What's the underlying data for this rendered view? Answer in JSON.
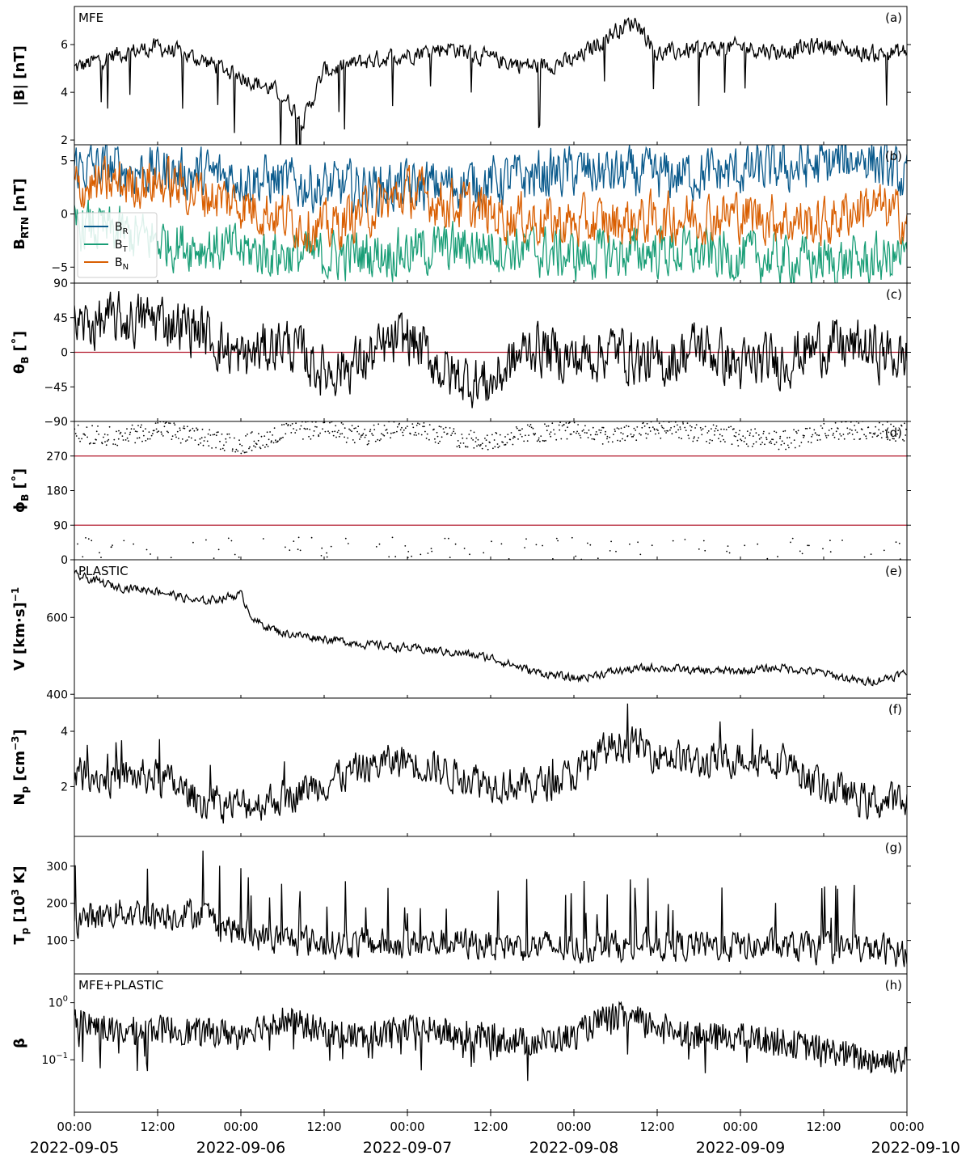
{
  "chart_data": {
    "type": "line",
    "x_axis": {
      "start": "2022-09-05 00:00",
      "end": "2022-09-10 00:00",
      "time_ticks": [
        "00:00",
        "12:00",
        "00:00",
        "12:00",
        "00:00",
        "12:00",
        "00:00",
        "12:00",
        "00:00",
        "12:00",
        "00:00"
      ],
      "date_ticks": [
        "2022-09-05",
        "2022-09-06",
        "2022-09-07",
        "2022-09-08",
        "2022-09-09",
        "2022-09-10"
      ]
    },
    "panels": [
      {
        "id": "a",
        "tag": "(a)",
        "instrument": "MFE",
        "ylabel": {
          "main": "|B| [nT]",
          "sub": ""
        },
        "scale": "linear",
        "ylim": [
          1.8,
          7.6
        ],
        "yticks": [
          {
            "v": 2,
            "label": "2"
          },
          {
            "v": 4,
            "label": "4"
          },
          {
            "v": 6,
            "label": "6"
          }
        ],
        "series": [
          {
            "name": "|B|",
            "color": "#000000",
            "x_hours": [
              0,
              6,
              12,
              18,
              24,
              30,
              33,
              36,
              42,
              48,
              54,
              60,
              66,
              72,
              78,
              81,
              84,
              90,
              96,
              102,
              108,
              114,
              120
            ],
            "values": [
              5.0,
              5.6,
              5.9,
              5.4,
              4.7,
              3.9,
              2.8,
              4.9,
              5.3,
              5.6,
              5.9,
              5.4,
              5.1,
              5.3,
              6.6,
              7.0,
              5.6,
              5.8,
              5.9,
              5.7,
              6.0,
              5.6,
              5.7
            ]
          }
        ]
      },
      {
        "id": "b",
        "tag": "(b)",
        "instrument": "",
        "ylabel": {
          "main": "B",
          "sub": "RTN",
          "unit": " [nT]"
        },
        "scale": "linear",
        "ylim": [
          -6.5,
          6.5
        ],
        "yticks": [
          {
            "v": -5,
            "label": "−5"
          },
          {
            "v": 0,
            "label": "0"
          },
          {
            "v": 5,
            "label": "5"
          }
        ],
        "legend": {
          "position": "center-left"
        },
        "series": [
          {
            "name": "B",
            "sub": "R",
            "color": "#0a5a8c",
            "x_hours": [
              0,
              12,
              24,
              36,
              48,
              60,
              72,
              84,
              96,
              108,
              114,
              120
            ],
            "values": [
              4.5,
              4.0,
              3.5,
              2.5,
              2.5,
              3.0,
              4.0,
              3.5,
              4.0,
              4.5,
              5.5,
              3.0
            ]
          },
          {
            "name": "B",
            "sub": "T",
            "color": "#1a9e77",
            "x_hours": [
              0,
              12,
              24,
              36,
              48,
              60,
              72,
              84,
              96,
              108,
              114,
              120
            ],
            "values": [
              -1.0,
              -2.5,
              -3.5,
              -4.0,
              -3.5,
              -3.0,
              -4.0,
              -3.5,
              -4.0,
              -4.5,
              -4.5,
              -4.0
            ]
          },
          {
            "name": "B",
            "sub": "N",
            "color": "#d95f02",
            "x_hours": [
              0,
              12,
              24,
              36,
              48,
              60,
              72,
              84,
              96,
              108,
              114,
              120
            ],
            "values": [
              2.5,
              3.0,
              1.0,
              -1.5,
              2.0,
              0.0,
              -1.0,
              -0.5,
              0.0,
              -1.0,
              1.0,
              -0.5
            ]
          }
        ]
      },
      {
        "id": "c",
        "tag": "(c)",
        "instrument": "",
        "ylabel": {
          "main": "θ",
          "sub": "B",
          "unit": " [˚]"
        },
        "scale": "linear",
        "ylim": [
          -90,
          90
        ],
        "yticks": [
          {
            "v": -90,
            "label": "−90"
          },
          {
            "v": -45,
            "label": "−45"
          },
          {
            "v": 0,
            "label": "0"
          },
          {
            "v": 45,
            "label": "45"
          },
          {
            "v": 90,
            "label": "90"
          }
        ],
        "ref_lines": [
          0
        ],
        "series": [
          {
            "name": "θB",
            "color": "#000000",
            "x_hours": [
              0,
              6,
              12,
              18,
              24,
              30,
              36,
              42,
              48,
              54,
              60,
              66,
              72,
              78,
              84,
              90,
              96,
              102,
              108,
              114,
              120
            ],
            "values": [
              35,
              40,
              45,
              30,
              -10,
              15,
              -25,
              -10,
              20,
              -30,
              -40,
              10,
              -10,
              5,
              -20,
              10,
              -20,
              -10,
              10,
              5,
              -10
            ]
          }
        ]
      },
      {
        "id": "d",
        "tag": "(d)",
        "instrument": "",
        "ylabel": {
          "main": "ϕ",
          "sub": "B",
          "unit": " [˚]"
        },
        "scale": "linear",
        "ylim": [
          0,
          360
        ],
        "yticks": [
          {
            "v": 0,
            "label": "0"
          },
          {
            "v": 90,
            "label": "90"
          },
          {
            "v": 180,
            "label": "180"
          },
          {
            "v": 270,
            "label": "270"
          }
        ],
        "ref_lines": [
          90,
          270
        ],
        "series": [
          {
            "name": "ϕB",
            "color": "#000000",
            "style": "points",
            "x_hours": [
              0,
              6,
              12,
              18,
              24,
              30,
              36,
              42,
              48,
              54,
              60,
              66,
              72,
              78,
              84,
              90,
              96,
              102,
              108,
              114,
              120
            ],
            "values": [
              330,
              320,
              340,
              320,
              300,
              330,
              340,
              320,
              350,
              320,
              310,
              330,
              340,
              320,
              340,
              330,
              320,
              310,
              330,
              340,
              330
            ]
          }
        ]
      },
      {
        "id": "e",
        "tag": "(e)",
        "instrument": "PLASTIC",
        "ylabel": {
          "main": "V [km·s",
          "sup": "−1",
          "unit": "]"
        },
        "scale": "linear",
        "ylim": [
          390,
          750
        ],
        "yticks": [
          {
            "v": 400,
            "label": "400"
          },
          {
            "v": 600,
            "label": "600"
          }
        ],
        "series": [
          {
            "name": "V",
            "color": "#000000",
            "x_hours": [
              0,
              6,
              12,
              18,
              24,
              26,
              30,
              36,
              42,
              48,
              54,
              60,
              66,
              72,
              78,
              84,
              90,
              96,
              102,
              108,
              114,
              120
            ],
            "values": [
              710,
              680,
              670,
              640,
              660,
              590,
              560,
              545,
              530,
              520,
              510,
              495,
              460,
              440,
              460,
              470,
              460,
              460,
              470,
              455,
              430,
              455
            ]
          }
        ]
      },
      {
        "id": "f",
        "tag": "(f)",
        "instrument": "",
        "ylabel": {
          "main": "N",
          "sub": "p",
          "unit": " [cm",
          "sup": "−3",
          "unit2": "]"
        },
        "scale": "linear",
        "ylim": [
          0.2,
          5.2
        ],
        "yticks": [
          {
            "v": 2,
            "label": "2"
          },
          {
            "v": 4,
            "label": "4"
          }
        ],
        "series": [
          {
            "name": "Np",
            "color": "#000000",
            "x_hours": [
              0,
              6,
              12,
              18,
              24,
              30,
              36,
              42,
              48,
              54,
              60,
              66,
              72,
              78,
              84,
              90,
              96,
              102,
              108,
              114,
              120
            ],
            "values": [
              2.5,
              2.3,
              2.4,
              1.5,
              1.3,
              1.6,
              2.2,
              2.7,
              3.0,
              2.5,
              2.2,
              2.0,
              2.4,
              3.6,
              3.3,
              2.8,
              3.1,
              3.0,
              2.0,
              1.5,
              1.4
            ]
          }
        ]
      },
      {
        "id": "g",
        "tag": "(g)",
        "instrument": "",
        "ylabel": {
          "main": "T",
          "sub": "p",
          "unit": " [10",
          "sup": "3",
          "unit2": " K]"
        },
        "scale": "linear",
        "ylim": [
          10,
          380
        ],
        "yticks": [
          {
            "v": 100,
            "label": "100"
          },
          {
            "v": 200,
            "label": "200"
          },
          {
            "v": 300,
            "label": "300"
          }
        ],
        "series": [
          {
            "name": "Tp",
            "color": "#000000",
            "x_hours": [
              0,
              6,
              12,
              18,
              24,
              30,
              36,
              42,
              48,
              54,
              60,
              66,
              72,
              78,
              84,
              90,
              96,
              102,
              108,
              114,
              120
            ],
            "values": [
              150,
              180,
              170,
              175,
              120,
              100,
              95,
              90,
              90,
              95,
              90,
              85,
              80,
              85,
              90,
              85,
              85,
              80,
              80,
              75,
              70
            ]
          }
        ]
      },
      {
        "id": "h",
        "tag": "(h)",
        "instrument": "MFE+PLASTIC",
        "ylabel": {
          "main": "β",
          "sub": ""
        },
        "scale": "log",
        "ylim": [
          0.012,
          3.2
        ],
        "yticks": [
          {
            "v": 0.1,
            "label": "10",
            "sup": "−1"
          },
          {
            "v": 1,
            "label": "10",
            "sup": "0"
          }
        ],
        "series": [
          {
            "name": "β",
            "color": "#000000",
            "x_hours": [
              0,
              6,
              12,
              18,
              24,
              30,
              36,
              42,
              48,
              54,
              60,
              66,
              72,
              78,
              84,
              90,
              96,
              102,
              108,
              114,
              120
            ],
            "values": [
              0.5,
              0.3,
              0.35,
              0.3,
              0.3,
              0.5,
              0.3,
              0.25,
              0.35,
              0.3,
              0.25,
              0.2,
              0.25,
              0.6,
              0.4,
              0.25,
              0.25,
              0.2,
              0.15,
              0.1,
              0.1
            ]
          }
        ]
      }
    ]
  }
}
